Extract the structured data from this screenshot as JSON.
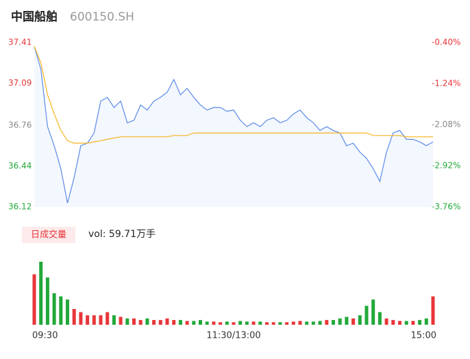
{
  "header": {
    "title": "中国船舶",
    "code": "600150.SH"
  },
  "chart_data": {
    "type": "line",
    "categories": [
      "09:30",
      null,
      null,
      null,
      null,
      null,
      null,
      null,
      null,
      null,
      null,
      null,
      null,
      null,
      null,
      null,
      null,
      null,
      null,
      null,
      null,
      null,
      null,
      null,
      null,
      null,
      null,
      null,
      null,
      null,
      "11:30/13:00",
      null,
      null,
      null,
      null,
      null,
      null,
      null,
      null,
      null,
      null,
      null,
      null,
      null,
      null,
      null,
      null,
      null,
      null,
      null,
      null,
      null,
      null,
      null,
      null,
      null,
      null,
      null,
      null,
      null,
      "15:00"
    ],
    "series": [
      {
        "color": "#5a8ae8",
        "values": [
          37.38,
          37.2,
          36.75,
          36.6,
          36.42,
          36.15,
          36.35,
          36.6,
          36.62,
          36.7,
          36.95,
          36.98,
          36.9,
          36.95,
          36.78,
          36.8,
          36.92,
          36.88,
          36.95,
          36.98,
          37.02,
          37.12,
          37.0,
          37.05,
          36.98,
          36.92,
          36.88,
          36.9,
          36.9,
          36.87,
          36.88,
          36.8,
          36.75,
          36.78,
          36.75,
          36.8,
          36.82,
          36.78,
          36.8,
          36.85,
          36.88,
          36.82,
          36.78,
          36.72,
          36.75,
          36.72,
          36.7,
          36.6,
          36.62,
          36.55,
          36.5,
          36.42,
          36.32,
          36.55,
          36.7,
          36.72,
          36.65,
          36.65,
          36.63,
          36.6,
          36.63
        ]
      },
      {
        "color": "#f5b31e",
        "values": [
          37.38,
          37.25,
          37.0,
          36.85,
          36.72,
          36.64,
          36.62,
          36.62,
          36.62,
          36.63,
          36.64,
          36.65,
          36.66,
          36.67,
          36.67,
          36.67,
          36.67,
          36.67,
          36.67,
          36.67,
          36.67,
          36.68,
          36.68,
          36.68,
          36.7,
          36.7,
          36.7,
          36.7,
          36.7,
          36.7,
          36.7,
          36.7,
          36.7,
          36.7,
          36.7,
          36.7,
          36.7,
          36.7,
          36.7,
          36.7,
          36.7,
          36.7,
          36.7,
          36.7,
          36.7,
          36.7,
          36.7,
          36.7,
          36.7,
          36.7,
          36.7,
          36.68,
          36.68,
          36.68,
          36.68,
          36.68,
          36.67,
          36.67,
          36.67,
          36.67,
          36.67
        ]
      }
    ],
    "ylim": [
      36.12,
      37.41
    ],
    "yticks": [
      37.41,
      37.09,
      36.76,
      36.44,
      36.12
    ],
    "y2lim": [
      -3.76,
      -0.4
    ],
    "y2ticks": [
      {
        "value": -0.4,
        "label": "-0.40%"
      },
      {
        "value": -1.24,
        "label": "-1.24%"
      },
      {
        "value": -2.08,
        "label": "-2.08%"
      },
      {
        "value": -2.92,
        "label": "-2.92%"
      },
      {
        "value": -3.76,
        "label": "-3.76%"
      }
    ],
    "volume": {
      "label": "日成交量",
      "text": "vol: 59.71万手",
      "up_color": "#e8363a",
      "down_color": "#22a83a",
      "values": [
        1.6,
        2.0,
        1.5,
        1.0,
        0.9,
        0.8,
        0.5,
        0.4,
        0.3,
        0.3,
        0.3,
        0.4,
        0.3,
        0.25,
        0.2,
        0.2,
        0.15,
        0.2,
        0.15,
        0.15,
        0.2,
        0.15,
        0.15,
        0.12,
        0.12,
        0.15,
        0.1,
        0.1,
        0.08,
        0.1,
        0.08,
        0.12,
        0.1,
        0.1,
        0.1,
        0.08,
        0.08,
        0.08,
        0.08,
        0.1,
        0.12,
        0.1,
        0.1,
        0.12,
        0.15,
        0.15,
        0.2,
        0.25,
        0.2,
        0.3,
        0.6,
        0.8,
        0.4,
        0.2,
        0.15,
        0.12,
        0.12,
        0.12,
        0.15,
        0.2,
        0.9
      ]
    }
  }
}
